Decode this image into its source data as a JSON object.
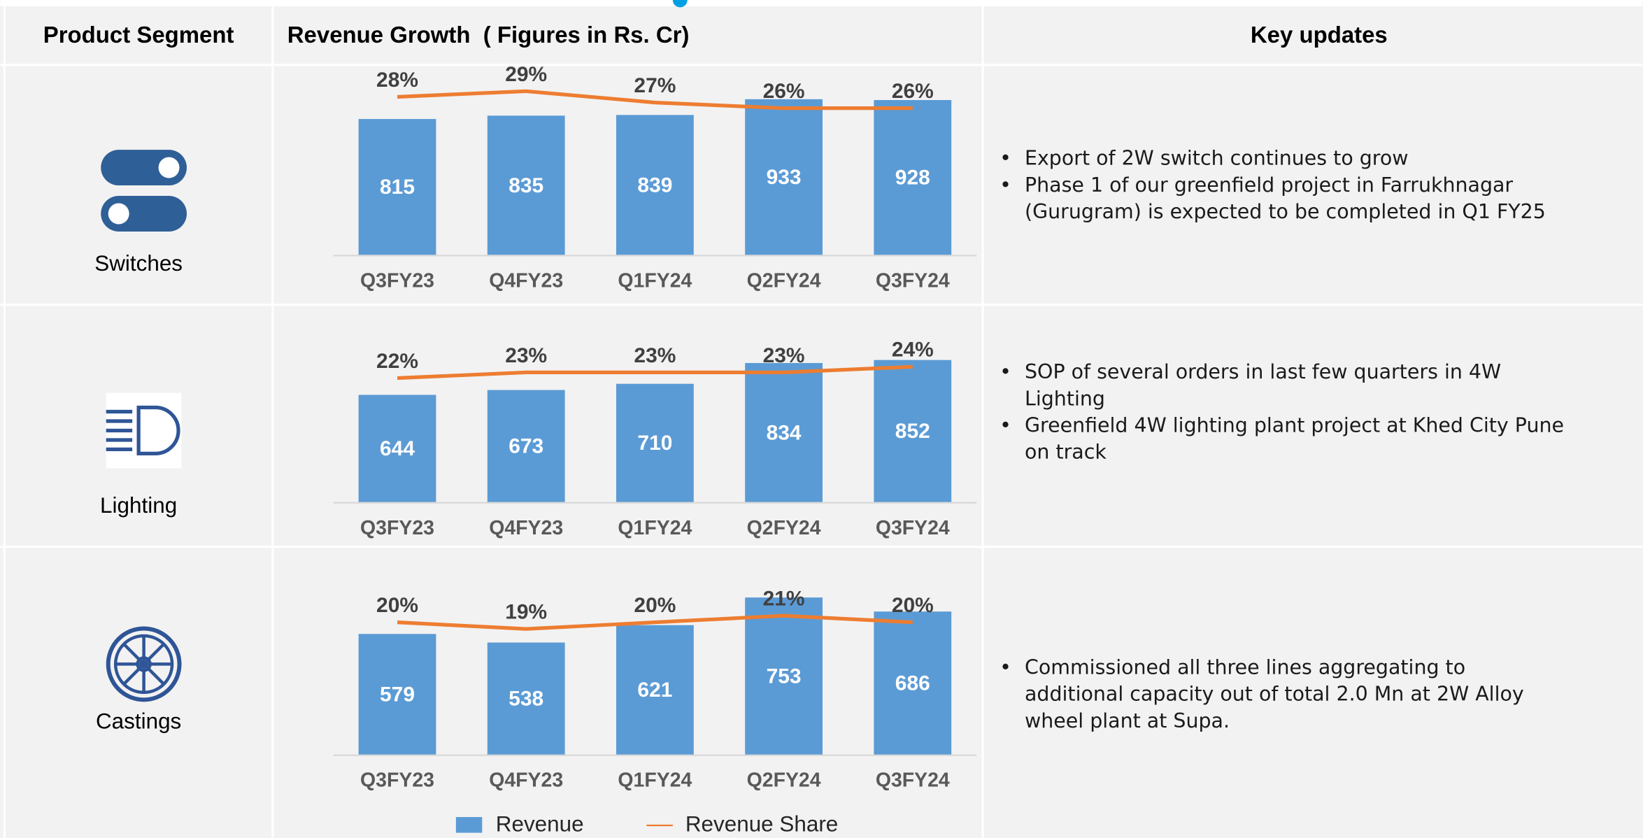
{
  "header": {
    "segment": "Product Segment",
    "growth": "Revenue Growth  ( Figures in Rs. Cr)",
    "updates": "Key updates"
  },
  "rows": [
    {
      "segment": "Switches",
      "updates": [
        [
          "Export of 2W switch continues to grow"
        ],
        [
          "Phase 1 of our greenfield project in Farrukhnagar",
          "(Gurugram) is expected to be completed in Q1 FY25"
        ]
      ]
    },
    {
      "segment": "Lighting",
      "updates": [
        [
          "SOP of several orders in last few quarters in 4W",
          "Lighting"
        ],
        [
          "Greenfield 4W lighting plant project at Khed City Pune",
          "on track"
        ]
      ]
    },
    {
      "segment": "Castings",
      "updates": [
        [
          "Commissioned all three lines aggregating to",
          "additional capacity out of total 2.0 Mn at 2W Alloy",
          "wheel plant at Supa."
        ]
      ]
    }
  ],
  "chart_data": [
    {
      "type": "bar",
      "categories": [
        "Q3FY23",
        "Q4FY23",
        "Q1FY24",
        "Q2FY24",
        "Q3FY24"
      ],
      "ylim": [
        0,
        1150
      ],
      "y2lim": [
        0,
        34
      ],
      "series": [
        {
          "name": "Revenue",
          "color": "#5b9bd5",
          "values": [
            815,
            835,
            839,
            933,
            928
          ]
        },
        {
          "name": "Revenue Share",
          "color": "#ed7d31",
          "type": "line",
          "axis": "y2",
          "values": [
            28,
            29,
            27,
            26,
            26
          ],
          "value_labels": [
            "28%",
            "29%",
            "27%",
            "26%",
            "26%"
          ]
        }
      ]
    },
    {
      "type": "bar",
      "categories": [
        "Q3FY23",
        "Q4FY23",
        "Q1FY24",
        "Q2FY24",
        "Q3FY24"
      ],
      "ylim": [
        0,
        1150
      ],
      "y2lim": [
        0,
        34
      ],
      "series": [
        {
          "name": "Revenue",
          "color": "#5b9bd5",
          "values": [
            644,
            673,
            710,
            834,
            852
          ]
        },
        {
          "name": "Revenue Share",
          "color": "#ed7d31",
          "type": "line",
          "axis": "y2",
          "values": [
            22,
            23,
            23,
            23,
            24
          ],
          "value_labels": [
            "22%",
            "23%",
            "23%",
            "23%",
            "24%"
          ]
        }
      ]
    },
    {
      "type": "bar",
      "categories": [
        "Q3FY23",
        "Q4FY23",
        "Q1FY24",
        "Q2FY24",
        "Q3FY24"
      ],
      "ylim": [
        0,
        920
      ],
      "y2lim": [
        0,
        29
      ],
      "series": [
        {
          "name": "Revenue",
          "color": "#5b9bd5",
          "values": [
            579,
            538,
            621,
            753,
            686
          ]
        },
        {
          "name": "Revenue Share",
          "color": "#ed7d31",
          "type": "line",
          "axis": "y2",
          "values": [
            20,
            19,
            20,
            21,
            20
          ],
          "value_labels": [
            "20%",
            "19%",
            "20%",
            "21%",
            "20%"
          ]
        }
      ]
    }
  ]
}
